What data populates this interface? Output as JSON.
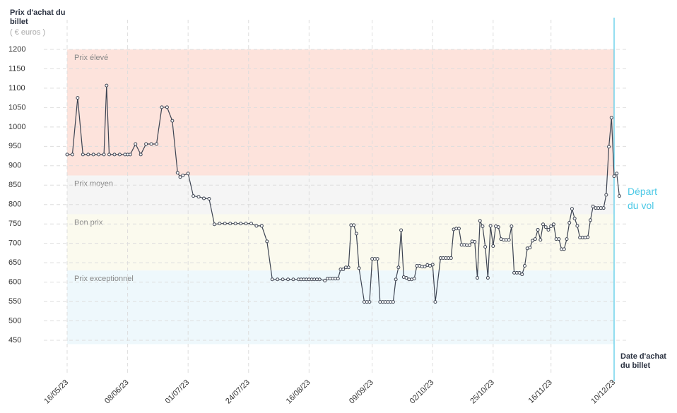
{
  "chart_data": {
    "type": "line",
    "y_title": "Prix d'achat du billet",
    "y_unit": "( € euros )",
    "x_title": "Date d'achat du billet",
    "xlim": [
      "2023-05-16",
      "2023-12-10"
    ],
    "xticks": [
      {
        "value": "2023-05-16",
        "label": "16/05/23"
      },
      {
        "value": "2023-06-08",
        "label": "08/06/23"
      },
      {
        "value": "2023-07-01",
        "label": "01/07/23"
      },
      {
        "value": "2023-07-24",
        "label": "24/07/23"
      },
      {
        "value": "2023-08-16",
        "label": "16/08/23"
      },
      {
        "value": "2023-09-09",
        "label": "09/09/23"
      },
      {
        "value": "2023-10-02",
        "label": "02/10/23"
      },
      {
        "value": "2023-10-25",
        "label": "25/10/23"
      },
      {
        "value": "2023-11-16",
        "label": "16/11/23"
      },
      {
        "value": "2023-12-10",
        "label": "10/12/23"
      }
    ],
    "ylim": [
      450,
      1200
    ],
    "yticks": [
      450,
      500,
      550,
      600,
      650,
      700,
      750,
      800,
      850,
      900,
      950,
      1000,
      1050,
      1100,
      1150,
      1200
    ],
    "grid": true,
    "bands": [
      {
        "label": "Prix élevé",
        "from": 875,
        "to": 1200,
        "color": "#fde3dc"
      },
      {
        "label": "Prix moyen",
        "from": 775,
        "to": 875,
        "color": "#f5f5f5"
      },
      {
        "label": "Bon prix",
        "from": 630,
        "to": 775,
        "color": "#fbfaee"
      },
      {
        "label": "Prix exceptionnel",
        "from": 440,
        "to": 630,
        "color": "#eef8fc"
      }
    ],
    "departure": {
      "x": "2023-12-10",
      "label": "Départ du vol",
      "color": "#4dc9e6"
    },
    "x": [
      "2023-05-16",
      "2023-05-18",
      "2023-05-20",
      "2023-05-22",
      "2023-05-24",
      "2023-05-26",
      "2023-05-28",
      "2023-05-30",
      "2023-05-31",
      "2023-06-01",
      "2023-06-03",
      "2023-06-05",
      "2023-06-07",
      "2023-06-08",
      "2023-06-09",
      "2023-06-11",
      "2023-06-13",
      "2023-06-15",
      "2023-06-17",
      "2023-06-19",
      "2023-06-21",
      "2023-06-23",
      "2023-06-25",
      "2023-06-27",
      "2023-06-28",
      "2023-06-29",
      "2023-07-01",
      "2023-07-03",
      "2023-07-05",
      "2023-07-07",
      "2023-07-09",
      "2023-07-11",
      "2023-07-13",
      "2023-07-15",
      "2023-07-17",
      "2023-07-19",
      "2023-07-21",
      "2023-07-23",
      "2023-07-25",
      "2023-07-27",
      "2023-07-29",
      "2023-07-31",
      "2023-08-02",
      "2023-08-04",
      "2023-08-06",
      "2023-08-08",
      "2023-08-10",
      "2023-08-12",
      "2023-08-13",
      "2023-08-14",
      "2023-08-15",
      "2023-08-16",
      "2023-08-17",
      "2023-08-18",
      "2023-08-19",
      "2023-08-20",
      "2023-08-22",
      "2023-08-23",
      "2023-08-24",
      "2023-08-25",
      "2023-08-26",
      "2023-08-27",
      "2023-08-28",
      "2023-08-29",
      "2023-08-30",
      "2023-08-31",
      "2023-09-01",
      "2023-09-02",
      "2023-09-03",
      "2023-09-04",
      "2023-09-06",
      "2023-09-07",
      "2023-09-08",
      "2023-09-09",
      "2023-09-10",
      "2023-09-11",
      "2023-09-12",
      "2023-09-13",
      "2023-09-14",
      "2023-09-15",
      "2023-09-16",
      "2023-09-17",
      "2023-09-18",
      "2023-09-19",
      "2023-09-20",
      "2023-09-21",
      "2023-09-22",
      "2023-09-23",
      "2023-09-24",
      "2023-09-25",
      "2023-09-26",
      "2023-09-27",
      "2023-09-28",
      "2023-09-29",
      "2023-09-30",
      "2023-10-01",
      "2023-10-02",
      "2023-10-03",
      "2023-10-05",
      "2023-10-06",
      "2023-10-07",
      "2023-10-08",
      "2023-10-09",
      "2023-10-10",
      "2023-10-11",
      "2023-10-12",
      "2023-10-13",
      "2023-10-14",
      "2023-10-15",
      "2023-10-16",
      "2023-10-17",
      "2023-10-18",
      "2023-10-19",
      "2023-10-20",
      "2023-10-21",
      "2023-10-22",
      "2023-10-23",
      "2023-10-24",
      "2023-10-25",
      "2023-10-26",
      "2023-10-27",
      "2023-10-28",
      "2023-10-29",
      "2023-10-30",
      "2023-10-31",
      "2023-11-01",
      "2023-11-02",
      "2023-11-03",
      "2023-11-04",
      "2023-11-05",
      "2023-11-06",
      "2023-11-07",
      "2023-11-08",
      "2023-11-09",
      "2023-11-10",
      "2023-11-11",
      "2023-11-12",
      "2023-11-13",
      "2023-11-14",
      "2023-11-15",
      "2023-11-16",
      "2023-11-17",
      "2023-11-18",
      "2023-11-19",
      "2023-11-20",
      "2023-11-21",
      "2023-11-22",
      "2023-11-23",
      "2023-11-24",
      "2023-11-25",
      "2023-11-26",
      "2023-11-27",
      "2023-11-28",
      "2023-11-29",
      "2023-11-30",
      "2023-12-01",
      "2023-12-02",
      "2023-12-03",
      "2023-12-04",
      "2023-12-05",
      "2023-12-06",
      "2023-12-07",
      "2023-12-08",
      "2023-12-09",
      "2023-12-10",
      "2023-12-11",
      "2023-12-12"
    ],
    "series": [
      {
        "color": "#3d4452",
        "values": [
          929,
          929,
          1075,
          929,
          929,
          929,
          929,
          929,
          1107,
          929,
          929,
          929,
          929,
          929,
          929,
          956,
          929,
          956,
          956,
          956,
          1051,
          1051,
          1016,
          882,
          871,
          875,
          880,
          822,
          820,
          816,
          815,
          749,
          751,
          751,
          751,
          751,
          751,
          751,
          751,
          745,
          745,
          705,
          607,
          607,
          607,
          607,
          607,
          607,
          607,
          607,
          607,
          607,
          607,
          607,
          607,
          607,
          604,
          609,
          609,
          609,
          609,
          609,
          633,
          633,
          638,
          638,
          747,
          747,
          725,
          636,
          549,
          549,
          549,
          660,
          660,
          660,
          549,
          549,
          549,
          549,
          549,
          549,
          607,
          638,
          734,
          613,
          611,
          607,
          607,
          609,
          642,
          642,
          640,
          640,
          644,
          642,
          645,
          549,
          662,
          662,
          662,
          662,
          662,
          736,
          738,
          738,
          696,
          696,
          695,
          695,
          705,
          704,
          611,
          758,
          744,
          691,
          611,
          745,
          693,
          744,
          742,
          711,
          709,
          709,
          709,
          744,
          624,
          624,
          624,
          620,
          642,
          687,
          689,
          707,
          711,
          735,
          709,
          749,
          742,
          735,
          744,
          749,
          711,
          711,
          685,
          685,
          711,
          753,
          789,
          764,
          745,
          715,
          715,
          715,
          716,
          760,
          795,
          791,
          791,
          791,
          791,
          825,
          949,
          1024,
          873,
          880,
          822
        ]
      }
    ]
  }
}
